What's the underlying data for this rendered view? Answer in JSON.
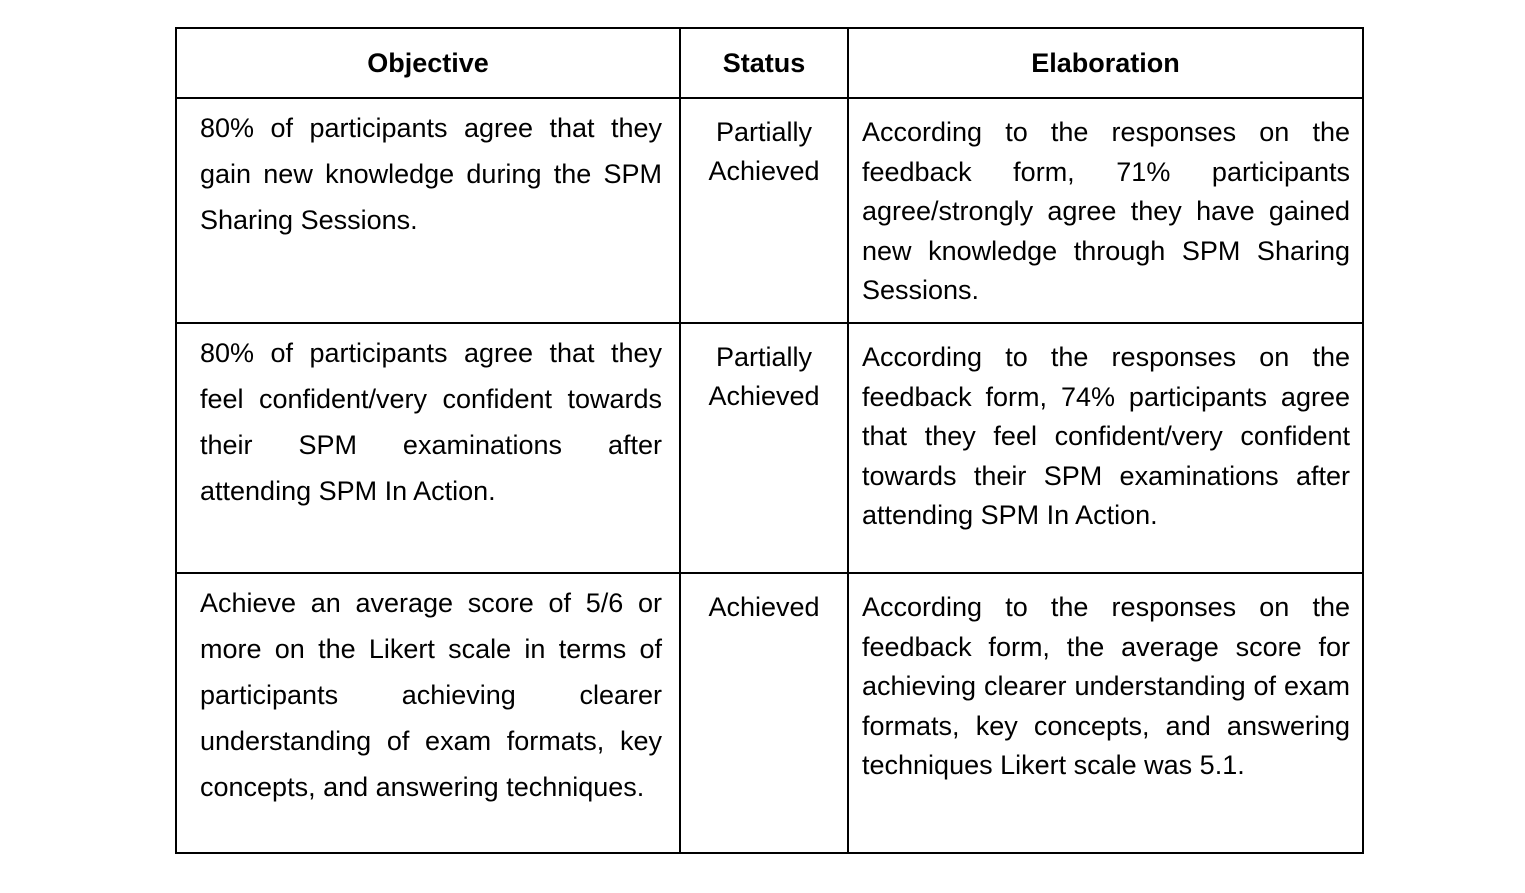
{
  "table": {
    "headers": {
      "objective": "Objective",
      "status": "Status",
      "elaboration": "Elaboration"
    },
    "rows": [
      {
        "objective": "80% of participants agree that they gain new knowledge during the SPM Sharing Sessions.",
        "status": "Partially Achieved",
        "elaboration": "According to the responses on the feedback form, 71% participants agree/strongly agree they have gained new knowledge through SPM Sharing Sessions."
      },
      {
        "objective": "80% of participants agree that they feel confident/very confident towards their SPM examinations after attending SPM In Action.",
        "status": "Partially Achieved",
        "elaboration": "According to the responses on the feedback form, 74% participants agree that they feel confident/very confident towards their SPM examinations after attending SPM In Action."
      },
      {
        "objective": "Achieve an average score of 5/6 or more on the Likert scale in terms of participants achieving clearer understanding of exam formats, key concepts, and answering techniques.",
        "status": "Achieved",
        "elaboration": "According to the responses on the feedback form, the average score for achieving clearer understanding of exam formats, key concepts, and answering techniques Likert scale was 5.1."
      }
    ]
  }
}
